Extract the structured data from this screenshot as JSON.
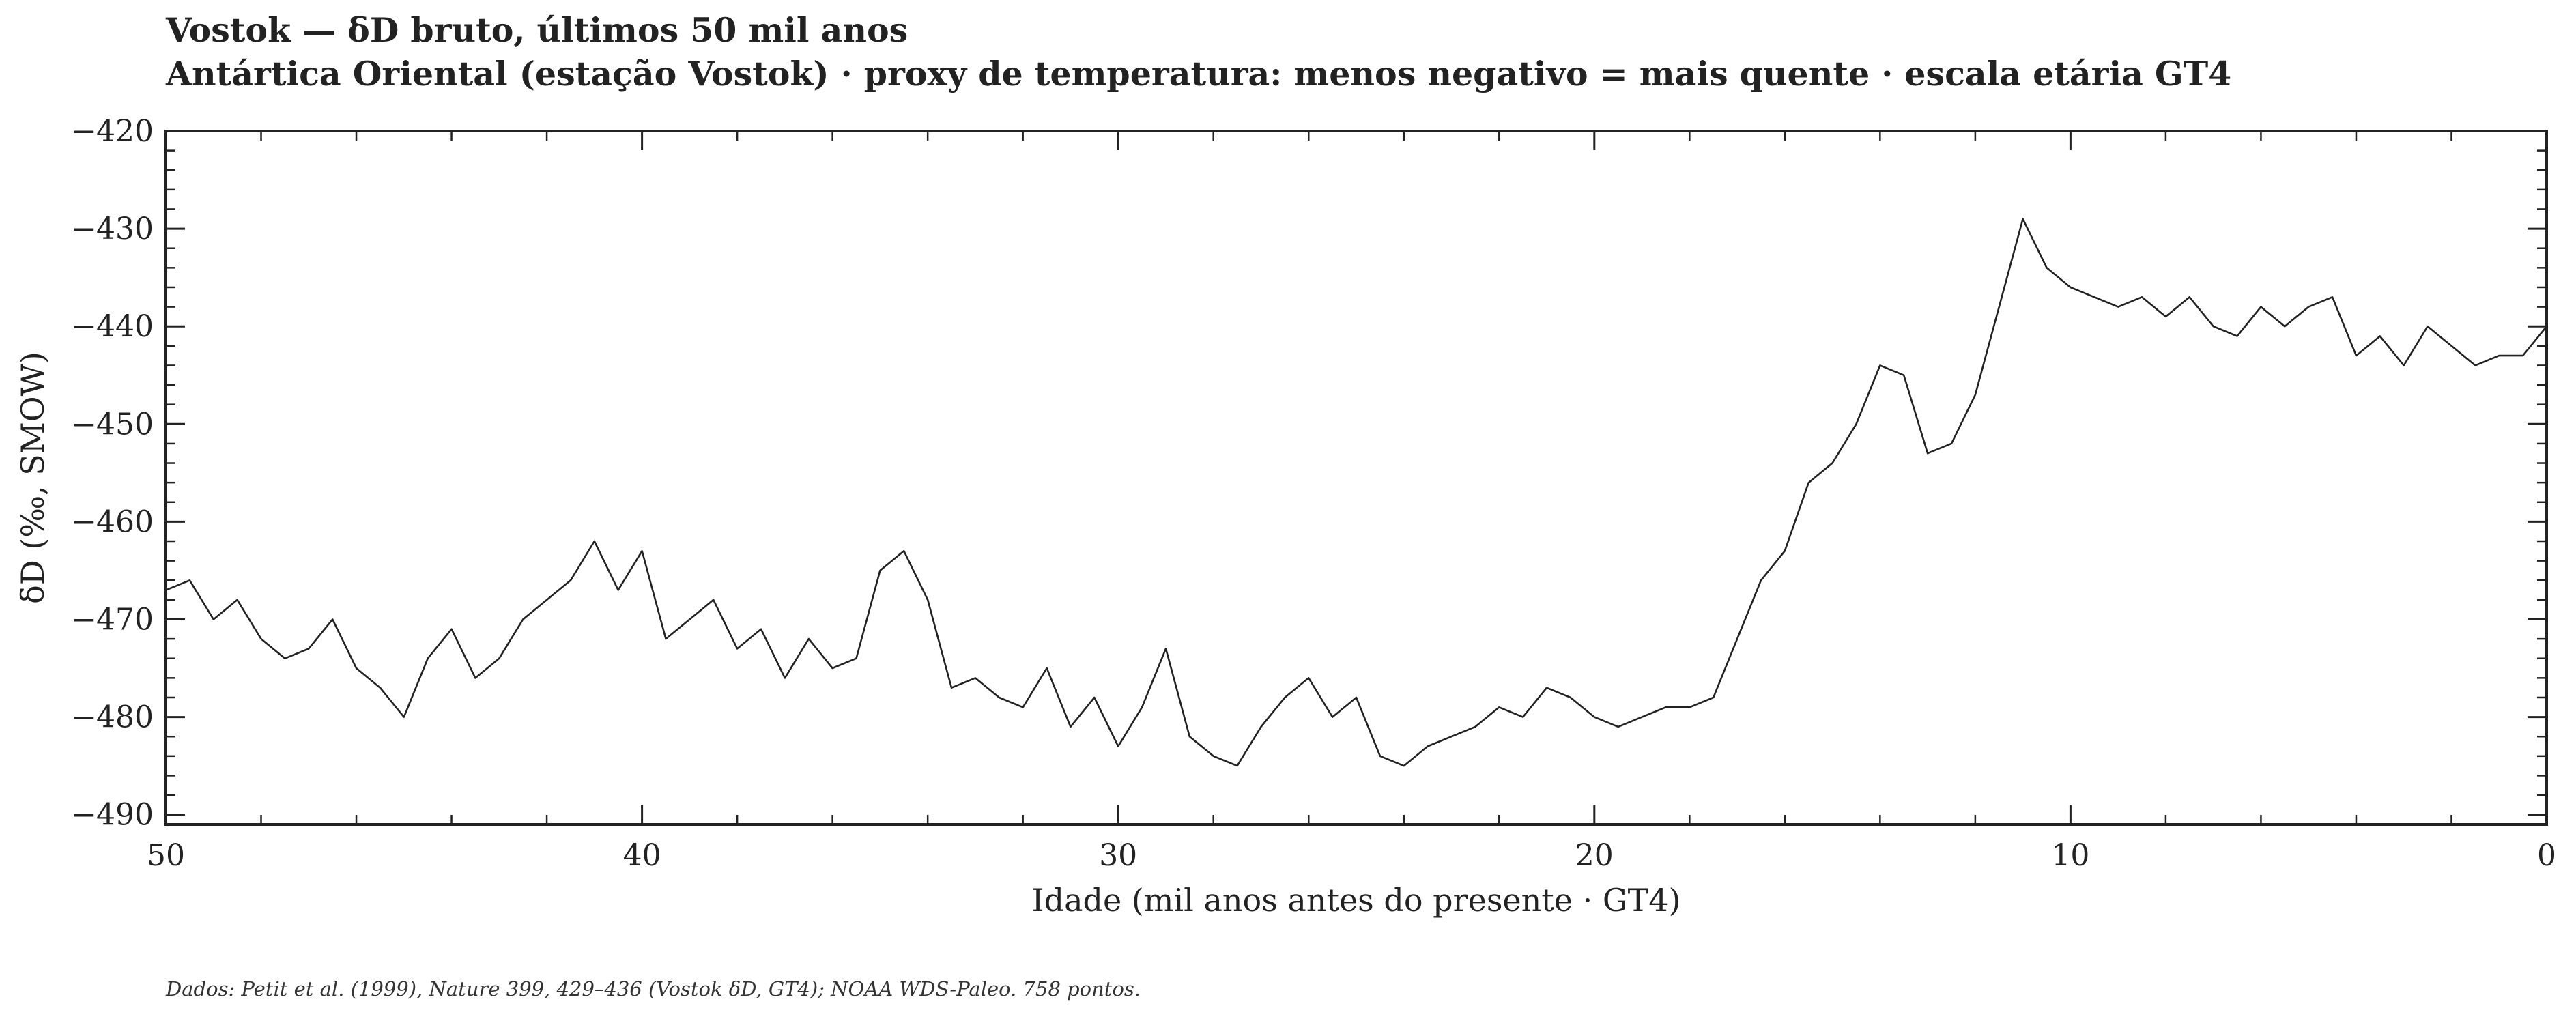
{
  "chart_data": {
    "type": "line",
    "title": "Vostok — δD bruto, últimos 50 mil anos",
    "subtitle": "Antártica Oriental (estação Vostok) · proxy de temperatura: menos negativo = mais quente · escala etária GT4",
    "xlabel": "Idade (mil anos antes do presente · GT4)",
    "ylabel": "δD (‰, SMOW)",
    "xlim": [
      50,
      0
    ],
    "ylim": [
      -491,
      -420
    ],
    "x_reversed": true,
    "xticks": [
      50,
      40,
      30,
      20,
      10,
      0
    ],
    "xtick_labels": [
      "50",
      "40",
      "30",
      "20",
      "10",
      "0"
    ],
    "yticks": [
      -420,
      -430,
      -440,
      -450,
      -460,
      -470,
      -480,
      -490
    ],
    "ytick_labels": [
      "−420",
      "−430",
      "−440",
      "−450",
      "−460",
      "−470",
      "−480",
      "−490"
    ],
    "grid": false,
    "line_color": "#222222",
    "x": [
      50.0,
      49.5,
      49.0,
      48.5,
      48.0,
      47.5,
      47.0,
      46.5,
      46.0,
      45.5,
      45.0,
      44.5,
      44.0,
      43.5,
      43.0,
      42.5,
      42.0,
      41.5,
      41.0,
      40.5,
      40.0,
      39.5,
      39.0,
      38.5,
      38.0,
      37.5,
      37.0,
      36.5,
      36.0,
      35.5,
      35.0,
      34.5,
      34.0,
      33.5,
      33.0,
      32.5,
      32.0,
      31.5,
      31.0,
      30.5,
      30.0,
      29.5,
      29.0,
      28.5,
      28.0,
      27.5,
      27.0,
      26.5,
      26.0,
      25.5,
      25.0,
      24.5,
      24.0,
      23.5,
      23.0,
      22.5,
      22.0,
      21.5,
      21.0,
      20.5,
      20.0,
      19.5,
      19.0,
      18.5,
      18.0,
      17.5,
      17.0,
      16.5,
      16.0,
      15.5,
      15.0,
      14.5,
      14.0,
      13.5,
      13.0,
      12.5,
      12.0,
      11.5,
      11.0,
      10.5,
      10.0,
      9.5,
      9.0,
      8.5,
      8.0,
      7.5,
      7.0,
      6.5,
      6.0,
      5.5,
      5.0,
      4.5,
      4.0,
      3.5,
      3.0,
      2.5,
      2.0,
      1.5,
      1.0,
      0.5,
      0.0
    ],
    "values": [
      -467,
      -466,
      -470,
      -468,
      -472,
      -474,
      -473,
      -470,
      -475,
      -477,
      -480,
      -474,
      -471,
      -476,
      -474,
      -470,
      -468,
      -466,
      -462,
      -467,
      -463,
      -472,
      -470,
      -468,
      -473,
      -471,
      -476,
      -472,
      -475,
      -474,
      -465,
      -463,
      -468,
      -477,
      -476,
      -478,
      -479,
      -475,
      -481,
      -478,
      -483,
      -479,
      -473,
      -482,
      -484,
      -485,
      -481,
      -478,
      -476,
      -480,
      -478,
      -484,
      -485,
      -483,
      -482,
      -481,
      -479,
      -480,
      -477,
      -478,
      -480,
      -481,
      -480,
      -479,
      -479,
      -478,
      -472,
      -466,
      -463,
      -456,
      -454,
      -450,
      -444,
      -445,
      -453,
      -452,
      -447,
      -438,
      -429,
      -434,
      -436,
      -437,
      -438,
      -437,
      -439,
      -437,
      -440,
      -441,
      -438,
      -440,
      -438,
      -437,
      -443,
      -441,
      -444,
      -440,
      -442,
      -444,
      -443,
      -443,
      -440
    ]
  },
  "source_note": "Dados: Petit et al. (1999), Nature 399, 429–436 (Vostok δD, GT4); NOAA WDS-Paleo. 758 pontos."
}
